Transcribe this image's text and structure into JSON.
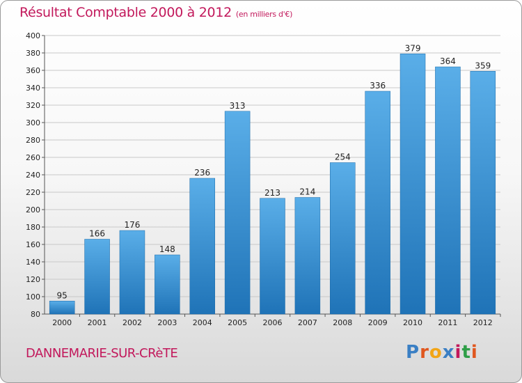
{
  "header": {
    "title": "Résultat Comptable 2000 à 2012",
    "subtitle": "(en milliers d'€)"
  },
  "footer": {
    "town": "DANNEMARIE-SUR-CRèTE",
    "logo_text": "Proxiti",
    "logo_colors": [
      "#3a7fc4",
      "#e0571f",
      "#f2a516",
      "#3a7fc4",
      "#c2185b",
      "#2e9e47",
      "#e0571f"
    ]
  },
  "colors": {
    "bar_top": "#5aaee8",
    "bar_bottom": "#1f73b7",
    "grid": "#c8c8c8",
    "title": "#c2185b"
  },
  "chart_data": {
    "type": "bar",
    "categories": [
      "2000",
      "2001",
      "2002",
      "2003",
      "2004",
      "2005",
      "2006",
      "2007",
      "2008",
      "2009",
      "2010",
      "2011",
      "2012"
    ],
    "values": [
      95,
      166,
      176,
      148,
      236,
      313,
      213,
      214,
      254,
      336,
      379,
      364,
      359
    ],
    "ylim": [
      80,
      400
    ],
    "yticks": [
      80,
      100,
      120,
      140,
      160,
      180,
      200,
      220,
      240,
      260,
      280,
      300,
      320,
      340,
      360,
      380,
      400
    ],
    "grid": true
  }
}
